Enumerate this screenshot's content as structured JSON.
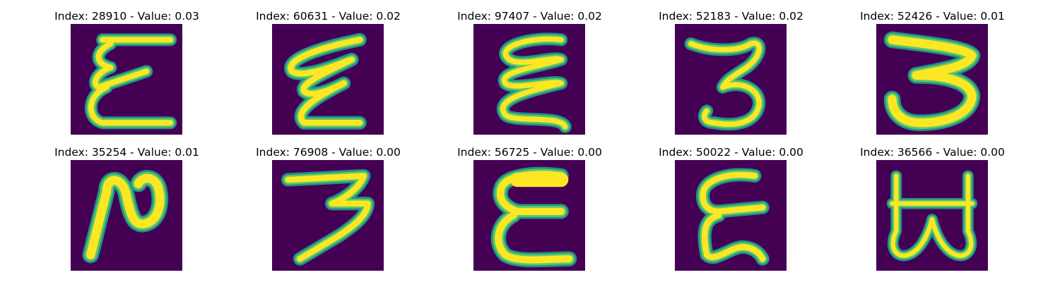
{
  "colors": {
    "background": "#440154",
    "stroke_outer": "#21918c",
    "stroke_mid": "#5ec962",
    "stroke_core": "#fde725"
  },
  "panels": [
    {
      "title": "Index: 28910 - Value: 0.03",
      "glyph": "epsilon-tall"
    },
    {
      "title": "Index: 60631 - Value: 0.02",
      "glyph": "zigzag"
    },
    {
      "title": "Index: 97407 - Value: 0.02",
      "glyph": "sigma-wave"
    },
    {
      "title": "Index: 52183 - Value: 0.02",
      "glyph": "three"
    },
    {
      "title": "Index: 52426 - Value: 0.01",
      "glyph": "three-wide"
    },
    {
      "title": "Index: 35254 - Value: 0.01",
      "glyph": "two-curl"
    },
    {
      "title": "Index: 76908 - Value: 0.00",
      "glyph": "three-z"
    },
    {
      "title": "Index: 56725 - Value: 0.00",
      "glyph": "epsilon-bold"
    },
    {
      "title": "Index: 50022 - Value: 0.00",
      "glyph": "epsilon-wave"
    },
    {
      "title": "Index: 36566 - Value: 0.00",
      "glyph": "b-sideways"
    }
  ]
}
